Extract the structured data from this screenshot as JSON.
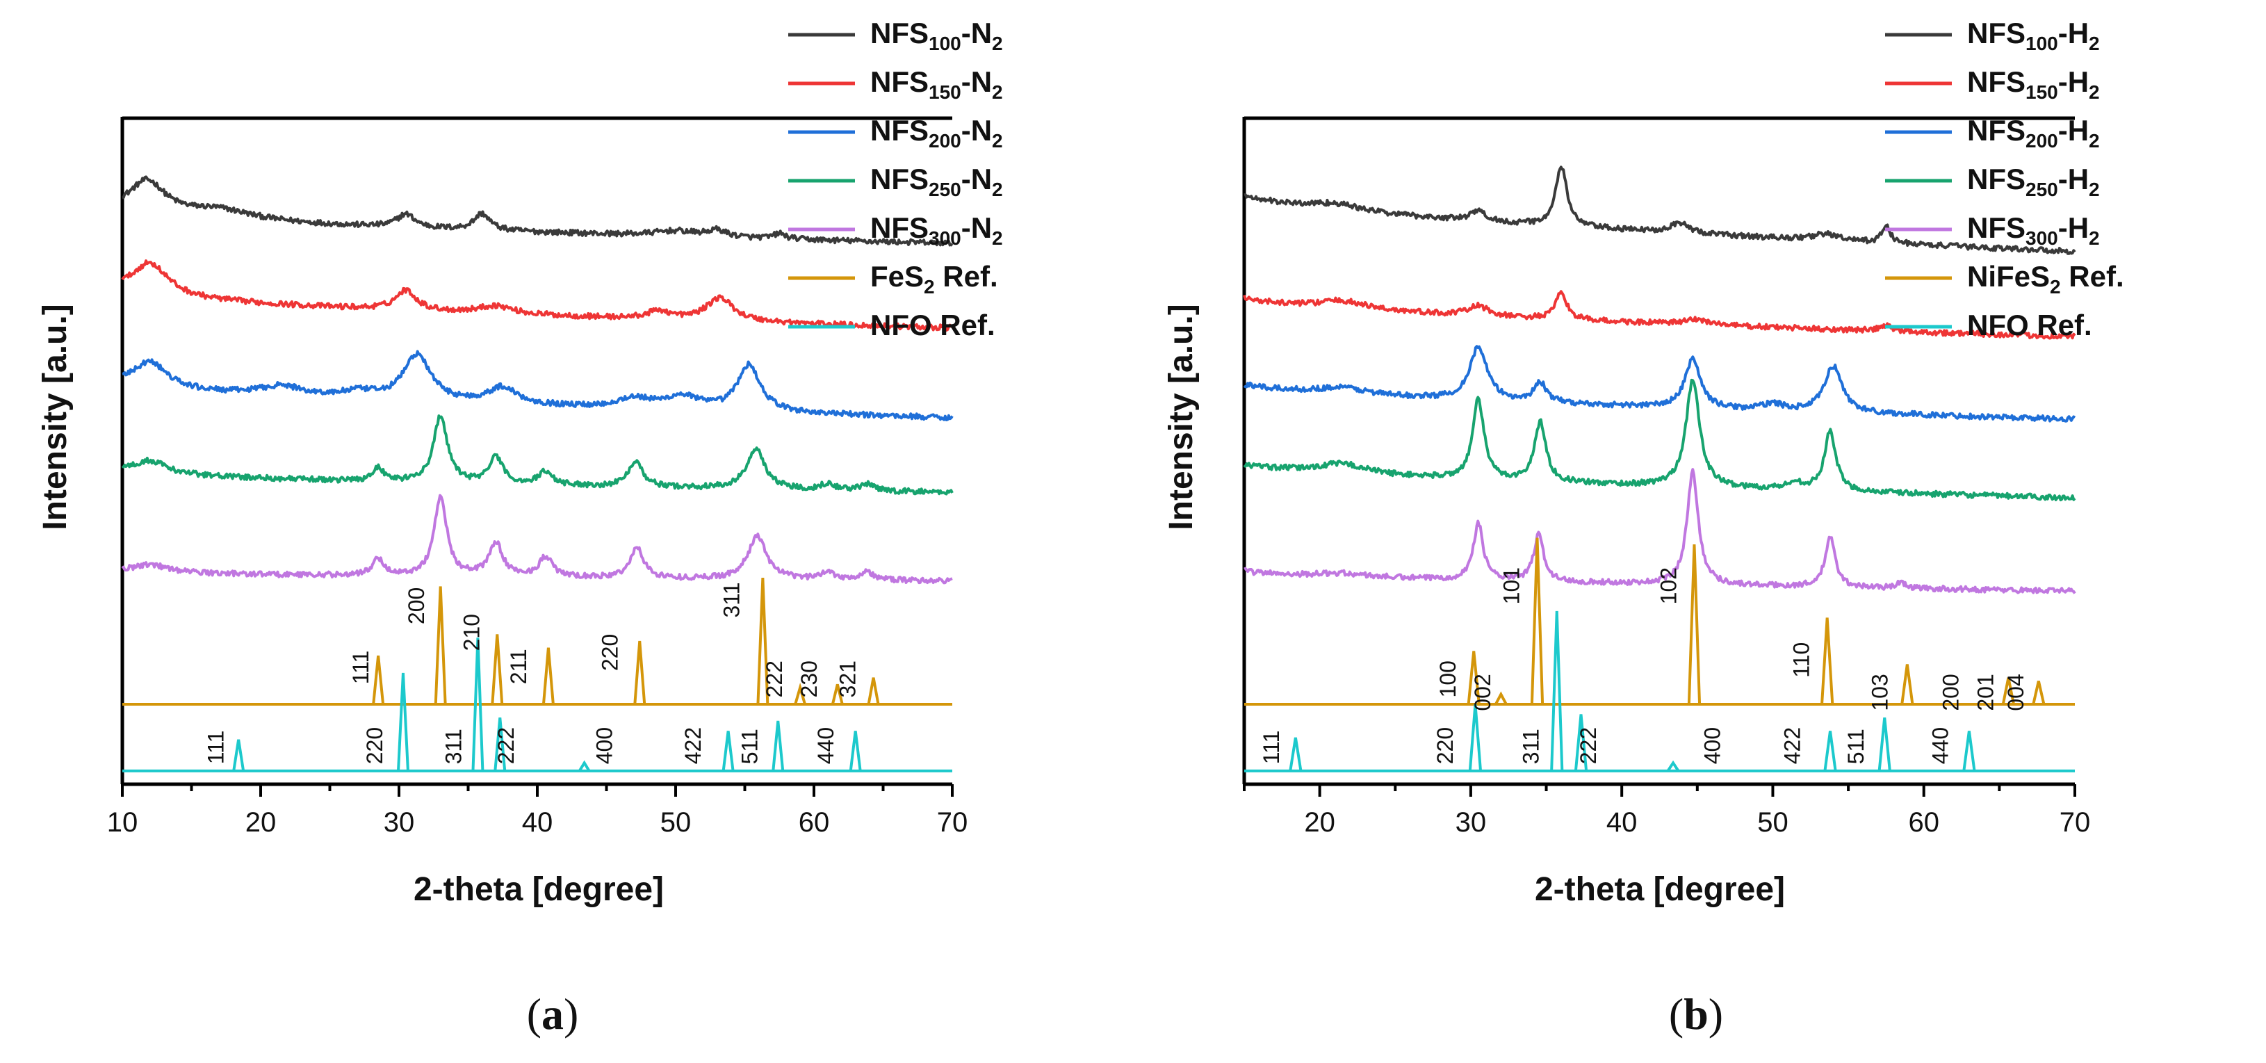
{
  "chart_data": [
    {
      "panel_label": "(a)",
      "type": "line",
      "xlabel": "2-theta [degree]",
      "ylabel": "Intensity [a.u.]",
      "xlim": [
        10,
        70
      ],
      "xticks": [
        10,
        20,
        30,
        40,
        50,
        60,
        70
      ],
      "grid": false,
      "legend": [
        {
          "label": "NFS",
          "sub": "100",
          "suffix": "-N",
          "sub2": "2",
          "color": "#3a3a3a"
        },
        {
          "label": "NFS",
          "sub": "150",
          "suffix": "-N",
          "sub2": "2",
          "color": "#ee3535"
        },
        {
          "label": "NFS",
          "sub": "200",
          "suffix": "-N",
          "sub2": "2",
          "color": "#1f6fd8"
        },
        {
          "label": "NFS",
          "sub": "250",
          "suffix": "-N",
          "sub2": "2",
          "color": "#17a36e"
        },
        {
          "label": "NFS",
          "sub": "300",
          "suffix": "-N",
          "sub2": "2",
          "color": "#c077e0"
        },
        {
          "label": "FeS",
          "sub": "2",
          "suffix": " Ref.",
          "sub2": "",
          "color": "#d4960a"
        },
        {
          "label": "NFO Ref.",
          "sub": "",
          "suffix": "",
          "sub2": "",
          "color": "#1cc9cc"
        }
      ],
      "series": [
        {
          "name": "NFS100-N2",
          "color": "#3a3a3a",
          "baseline": 0.812,
          "start_level": 0.86,
          "end_level": 0.812,
          "peaks": [
            [
              11.8,
              0.05,
              1.6
            ],
            [
              17,
              0.015,
              3
            ],
            [
              30.5,
              0.02,
              0.8
            ],
            [
              36,
              0.025,
              0.7
            ],
            [
              50,
              0.008,
              2
            ],
            [
              53,
              0.01,
              0.8
            ],
            [
              57.5,
              0.008,
              0.5
            ]
          ]
        },
        {
          "name": "NFS150-N2",
          "color": "#ee3535",
          "baseline": 0.685,
          "start_level": 0.74,
          "end_level": 0.685,
          "peaks": [
            [
              12,
              0.05,
              1.6
            ],
            [
              30.5,
              0.03,
              0.9
            ],
            [
              37,
              0.012,
              1.5
            ],
            [
              48.8,
              0.012,
              1
            ],
            [
              53.2,
              0.035,
              1.2
            ]
          ]
        },
        {
          "name": "NFS200-N2",
          "color": "#1f6fd8",
          "baseline": 0.55,
          "start_level": 0.6,
          "end_level": 0.55,
          "peaks": [
            [
              12,
              0.04,
              1.5
            ],
            [
              21.5,
              0.015,
              2
            ],
            [
              27,
              0.01,
              1.5
            ],
            [
              31.3,
              0.07,
              1.2
            ],
            [
              37.5,
              0.025,
              1.3
            ],
            [
              47,
              0.015,
              1.5
            ],
            [
              50.5,
              0.02,
              1.5
            ],
            [
              55.3,
              0.07,
              1.0
            ]
          ]
        },
        {
          "name": "NFS250-N2",
          "color": "#17a36e",
          "baseline": 0.438,
          "start_level": 0.47,
          "end_level": 0.438,
          "peaks": [
            [
              12,
              0.02,
              1.5
            ],
            [
              28.5,
              0.02,
              0.5
            ],
            [
              33,
              0.1,
              0.6
            ],
            [
              37,
              0.04,
              0.6
            ],
            [
              40.6,
              0.02,
              0.6
            ],
            [
              47.1,
              0.04,
              0.6
            ],
            [
              55.8,
              0.06,
              0.8
            ],
            [
              61,
              0.01,
              0.6
            ],
            [
              63.8,
              0.01,
              0.6
            ]
          ]
        },
        {
          "name": "NFS300-N2",
          "color": "#c077e0",
          "baseline": 0.305,
          "start_level": 0.32,
          "end_level": 0.305,
          "peaks": [
            [
              12,
              0.012,
              1.5
            ],
            [
              28.5,
              0.025,
              0.5
            ],
            [
              33,
              0.12,
              0.55
            ],
            [
              37,
              0.05,
              0.6
            ],
            [
              40.6,
              0.03,
              0.6
            ],
            [
              47.2,
              0.045,
              0.6
            ],
            [
              55.9,
              0.065,
              0.8
            ],
            [
              61,
              0.012,
              0.6
            ],
            [
              63.8,
              0.012,
              0.6
            ]
          ]
        }
      ],
      "references": [
        {
          "name": "FeS2 Ref.",
          "color": "#d4960a",
          "baseline": 0.12,
          "sticks": [
            [
              28.5,
              0.073
            ],
            [
              33.0,
              0.177
            ],
            [
              37.1,
              0.105
            ],
            [
              40.8,
              0.085
            ],
            [
              47.4,
              0.095
            ],
            [
              56.3,
              0.19
            ],
            [
              59.0,
              0.025
            ],
            [
              61.7,
              0.03
            ],
            [
              64.3,
              0.04
            ]
          ]
        },
        {
          "name": "NFO Ref.",
          "color": "#1cc9cc",
          "baseline": 0.02,
          "sticks": [
            [
              18.4,
              0.047
            ],
            [
              30.3,
              0.147
            ],
            [
              35.7,
              0.2
            ],
            [
              37.3,
              0.08
            ],
            [
              43.4,
              0.012
            ],
            [
              53.8,
              0.06
            ],
            [
              57.4,
              0.075
            ],
            [
              63.0,
              0.06
            ]
          ]
        }
      ],
      "hkl_labels": [
        {
          "text": "111",
          "x": 27.8,
          "y": 0.15
        },
        {
          "text": "200",
          "x": 31.8,
          "y": 0.24
        },
        {
          "text": "210",
          "x": 35.8,
          "y": 0.2
        },
        {
          "text": "211",
          "x": 39.2,
          "y": 0.15
        },
        {
          "text": "220",
          "x": 45.8,
          "y": 0.17
        },
        {
          "text": "311",
          "x": 54.6,
          "y": 0.25
        },
        {
          "text": "222",
          "x": 57.7,
          "y": 0.13
        },
        {
          "text": "230",
          "x": 60.2,
          "y": 0.13
        },
        {
          "text": "321",
          "x": 63.0,
          "y": 0.13
        },
        {
          "text": "111",
          "x": 17.3,
          "y": 0.03
        },
        {
          "text": "220",
          "x": 28.8,
          "y": 0.03
        },
        {
          "text": "311",
          "x": 34.5,
          "y": 0.03
        },
        {
          "text": "222",
          "x": 38.3,
          "y": 0.03
        },
        {
          "text": "400",
          "x": 45.4,
          "y": 0.03
        },
        {
          "text": "422",
          "x": 51.8,
          "y": 0.03
        },
        {
          "text": "511",
          "x": 55.9,
          "y": 0.03
        },
        {
          "text": "440",
          "x": 61.4,
          "y": 0.03
        }
      ]
    },
    {
      "panel_label": "(b)",
      "type": "line",
      "xlabel": "2-theta [degree]",
      "ylabel": "Intensity [a.u.]",
      "xlim": [
        15,
        70
      ],
      "xticks": [
        20,
        30,
        40,
        50,
        60,
        70
      ],
      "grid": false,
      "legend": [
        {
          "label": "NFS",
          "sub": "100",
          "suffix": "-H",
          "sub2": "2",
          "color": "#3a3a3a"
        },
        {
          "label": "NFS",
          "sub": "150",
          "suffix": "-H",
          "sub2": "2",
          "color": "#ee3535"
        },
        {
          "label": "NFS",
          "sub": "200",
          "suffix": "-H",
          "sub2": "2",
          "color": "#1f6fd8"
        },
        {
          "label": "NFS",
          "sub": "250",
          "suffix": "-H",
          "sub2": "2",
          "color": "#17a36e"
        },
        {
          "label": "NFS",
          "sub": "300",
          "suffix": "-H",
          "sub2": "2",
          "color": "#c077e0"
        },
        {
          "label": "NiFeS",
          "sub": "2",
          "suffix": " Ref.",
          "sub2": "",
          "color": "#d4960a"
        },
        {
          "label": "NFO Ref.",
          "sub": "",
          "suffix": "",
          "sub2": "",
          "color": "#1cc9cc"
        }
      ],
      "series": [
        {
          "name": "NFS100-H2",
          "color": "#3a3a3a",
          "baseline": 0.8,
          "start_level": 0.885,
          "end_level": 0.8,
          "peaks": [
            [
              21,
              0.01,
              2
            ],
            [
              30.5,
              0.015,
              0.6
            ],
            [
              36,
              0.09,
              0.45
            ],
            [
              43.8,
              0.015,
              0.8
            ],
            [
              53.5,
              0.01,
              1
            ],
            [
              57.5,
              0.025,
              0.35
            ]
          ]
        },
        {
          "name": "NFS150-H2",
          "color": "#ee3535",
          "baseline": 0.672,
          "start_level": 0.73,
          "end_level": 0.672,
          "peaks": [
            [
              21.5,
              0.012,
              2
            ],
            [
              30.5,
              0.015,
              0.8
            ],
            [
              36,
              0.04,
              0.45
            ],
            [
              45,
              0.008,
              1
            ],
            [
              57.5,
              0.008,
              0.5
            ]
          ]
        },
        {
          "name": "NFS200-H2",
          "color": "#1f6fd8",
          "baseline": 0.548,
          "start_level": 0.6,
          "end_level": 0.548,
          "peaks": [
            [
              21.5,
              0.01,
              2
            ],
            [
              30.5,
              0.08,
              0.7
            ],
            [
              34.6,
              0.03,
              0.5
            ],
            [
              44.7,
              0.075,
              0.6
            ],
            [
              50,
              0.01,
              0.8
            ],
            [
              54,
              0.07,
              0.7
            ]
          ]
        },
        {
          "name": "NFS250-H2",
          "color": "#17a36e",
          "baseline": 0.43,
          "start_level": 0.48,
          "end_level": 0.43,
          "peaks": [
            [
              21.5,
              0.015,
              2
            ],
            [
              30.5,
              0.12,
              0.45
            ],
            [
              34.6,
              0.09,
              0.45
            ],
            [
              44.7,
              0.16,
              0.55
            ],
            [
              51.5,
              0.01,
              0.8
            ],
            [
              53.8,
              0.09,
              0.45
            ]
          ]
        },
        {
          "name": "NFS300-H2",
          "color": "#c077e0",
          "baseline": 0.29,
          "start_level": 0.32,
          "end_level": 0.29,
          "peaks": [
            [
              21.5,
              0.005,
              2
            ],
            [
              30.5,
              0.085,
              0.4
            ],
            [
              34.5,
              0.07,
              0.4
            ],
            [
              44.7,
              0.17,
              0.45
            ],
            [
              53.8,
              0.075,
              0.4
            ],
            [
              58.5,
              0.008,
              0.4
            ]
          ]
        }
      ],
      "references": [
        {
          "name": "NiFeS2 Ref.",
          "color": "#d4960a",
          "baseline": 0.12,
          "sticks": [
            [
              30.2,
              0.08
            ],
            [
              32.0,
              0.015
            ],
            [
              34.4,
              0.25
            ],
            [
              44.8,
              0.24
            ],
            [
              53.6,
              0.13
            ],
            [
              58.9,
              0.06
            ],
            [
              65.6,
              0.04
            ],
            [
              67.6,
              0.035
            ]
          ]
        },
        {
          "name": "NFO Ref.",
          "color": "#1cc9cc",
          "baseline": 0.02,
          "sticks": [
            [
              18.4,
              0.05
            ],
            [
              30.3,
              0.1
            ],
            [
              35.7,
              0.24
            ],
            [
              37.3,
              0.085
            ],
            [
              43.4,
              0.012
            ],
            [
              53.8,
              0.06
            ],
            [
              57.4,
              0.08
            ],
            [
              63.0,
              0.06
            ]
          ]
        }
      ],
      "hkl_labels": [
        {
          "text": "100",
          "x": 29.0,
          "y": 0.13
        },
        {
          "text": "002",
          "x": 31.3,
          "y": 0.11
        },
        {
          "text": "101",
          "x": 33.2,
          "y": 0.27
        },
        {
          "text": "102",
          "x": 43.6,
          "y": 0.27
        },
        {
          "text": "110",
          "x": 52.4,
          "y": 0.16
        },
        {
          "text": "103",
          "x": 57.6,
          "y": 0.11
        },
        {
          "text": "200",
          "x": 62.3,
          "y": 0.11
        },
        {
          "text": "201",
          "x": 64.6,
          "y": 0.11
        },
        {
          "text": "004",
          "x": 66.6,
          "y": 0.11
        },
        {
          "text": "111",
          "x": 17.3,
          "y": 0.03
        },
        {
          "text": "220",
          "x": 28.8,
          "y": 0.03
        },
        {
          "text": "311",
          "x": 34.5,
          "y": 0.03
        },
        {
          "text": "222",
          "x": 38.3,
          "y": 0.03
        },
        {
          "text": "400",
          "x": 46.5,
          "y": 0.03
        },
        {
          "text": "422",
          "x": 51.8,
          "y": 0.03
        },
        {
          "text": "511",
          "x": 56.0,
          "y": 0.03
        },
        {
          "text": "440",
          "x": 61.6,
          "y": 0.03
        }
      ]
    }
  ]
}
